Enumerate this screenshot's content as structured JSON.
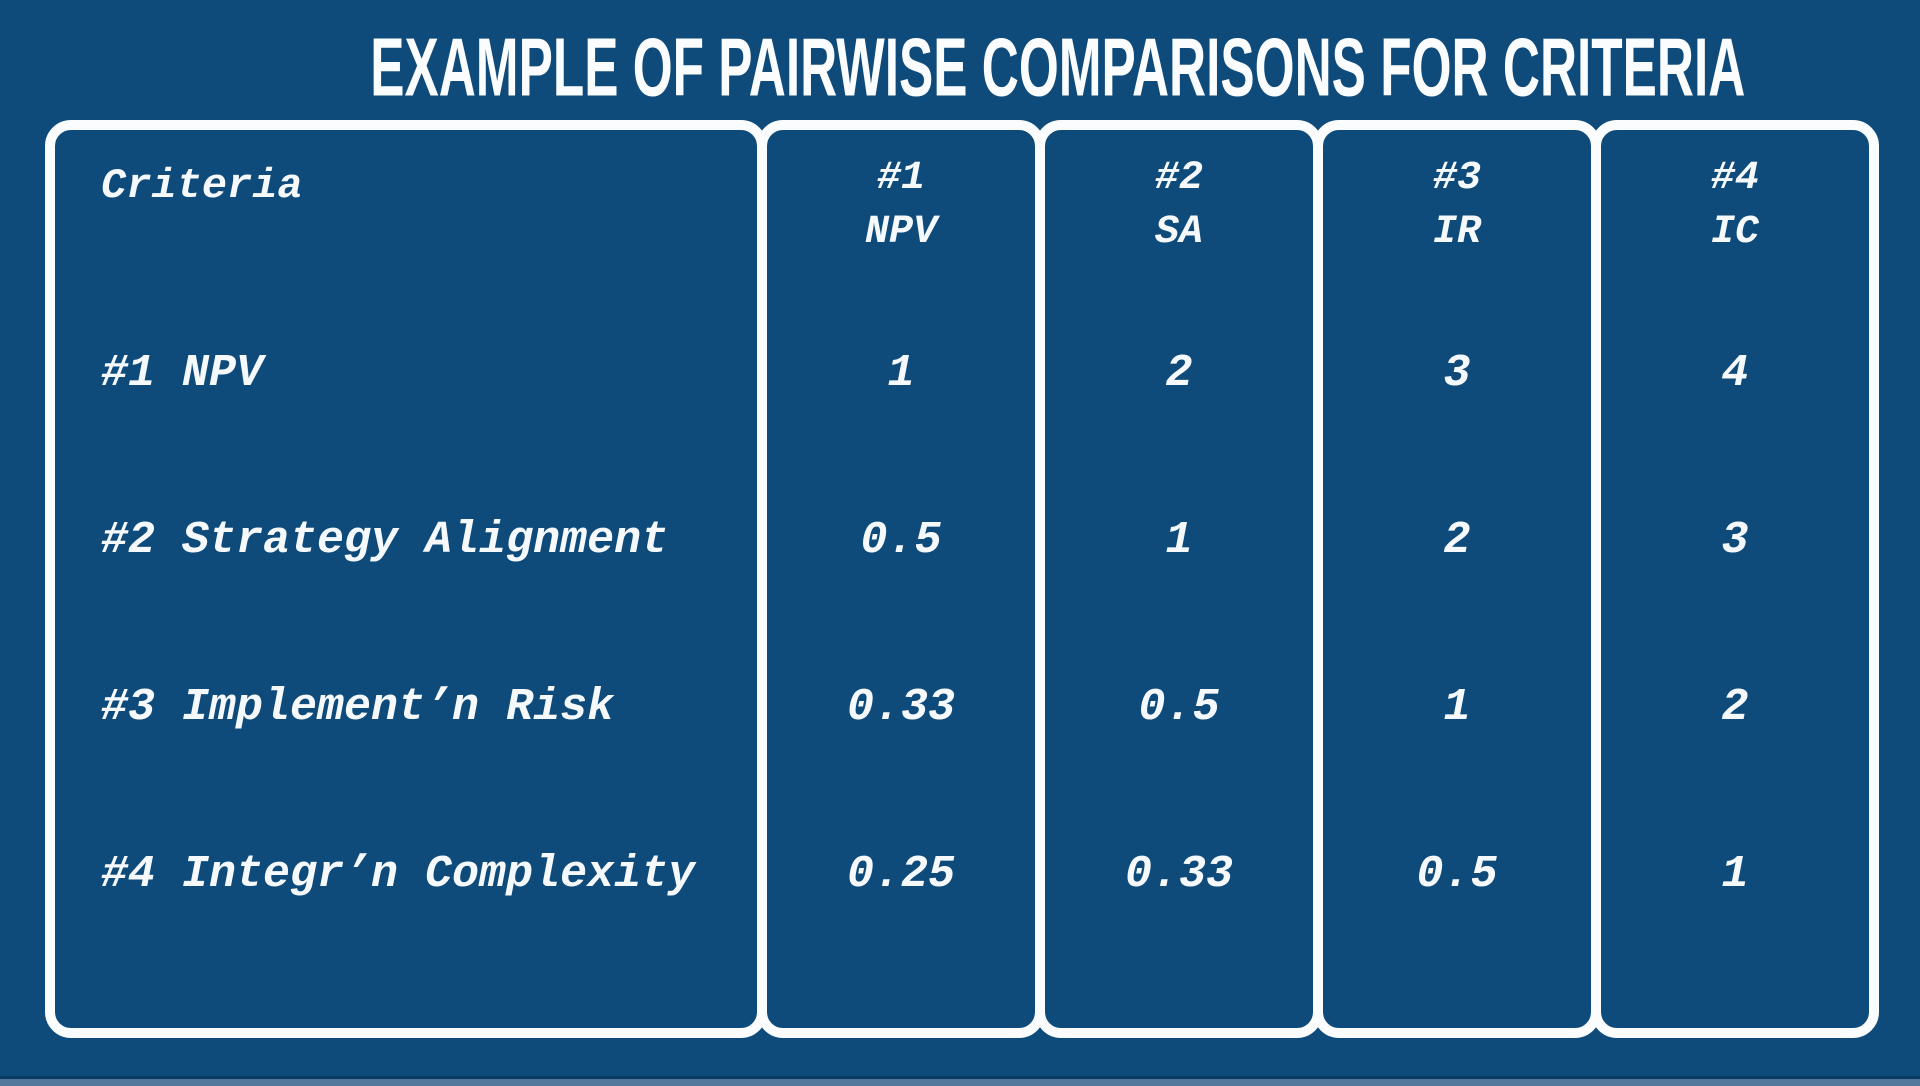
{
  "title": "EXAMPLE OF PAIRWISE COMPARISONS FOR CRITERIA",
  "colors": {
    "background": "#0e4b7b",
    "border_and_text": "#fafcfd",
    "bottom_strip": "#54789b",
    "bottom_dark_line": "#0a3c61"
  },
  "table": {
    "criteria_header": "Criteria",
    "columns": [
      {
        "num": "#1",
        "abbr": "NPV"
      },
      {
        "num": "#2",
        "abbr": "SA"
      },
      {
        "num": "#3",
        "abbr": "IR"
      },
      {
        "num": "#4",
        "abbr": "IC"
      }
    ],
    "rows": [
      {
        "label": "#1 NPV",
        "values": [
          "1",
          "2",
          "3",
          "4"
        ]
      },
      {
        "label": "#2 Strategy Alignment",
        "values": [
          "0.5",
          "1",
          "2",
          "3"
        ]
      },
      {
        "label": "#3 Implement’n Risk",
        "values": [
          "0.33",
          "0.5",
          "1",
          "2"
        ]
      },
      {
        "label": "#4 Integr’n Complexity",
        "values": [
          "0.25",
          "0.33",
          "0.5",
          "1"
        ]
      }
    ]
  },
  "chart_data": {
    "type": "table",
    "title": "EXAMPLE OF PAIRWISE COMPARISONS FOR CRITERIA",
    "row_header_label": "Criteria",
    "column_headers": [
      "#1 NPV",
      "#2 SA",
      "#3 IR",
      "#4 IC"
    ],
    "row_headers": [
      "#1 NPV",
      "#2 Strategy Alignment",
      "#3 Implement’n Risk",
      "#4 Integr’n Complexity"
    ],
    "values": [
      [
        1,
        2,
        3,
        4
      ],
      [
        0.5,
        1,
        2,
        3
      ],
      [
        0.33,
        0.5,
        1,
        2
      ],
      [
        0.25,
        0.33,
        0.5,
        1
      ]
    ],
    "layout_hints": {
      "grid": "vertical column boxes only, no horizontal row lines",
      "legend": "none",
      "background": "dark blue slide with white rounded column outlines"
    }
  }
}
